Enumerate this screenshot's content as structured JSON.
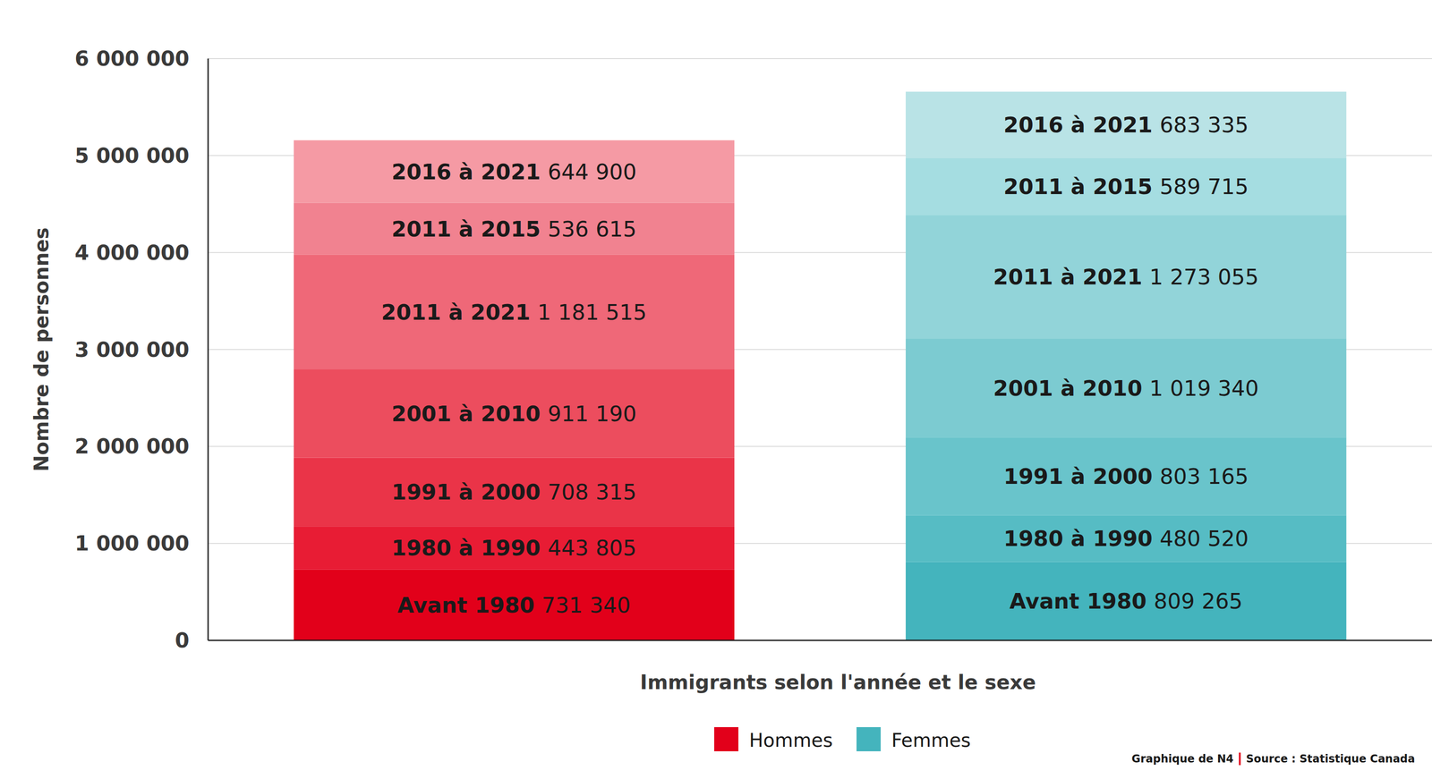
{
  "chart_data": {
    "type": "bar",
    "stacked": true,
    "x_label": "Immigrants selon l'année et le sexe",
    "y_label": "Nombre de personnes",
    "annotations": [
      "Graphique de N4",
      "Source : Statistique Canada"
    ],
    "categories": [
      "Avant 1980",
      "1980 à 1990",
      "1991 à 2000",
      "2001 à 2010",
      "2011 à 2021",
      "2011 à 2015",
      "2016 à 2021"
    ],
    "series": [
      {
        "name": "Hommes",
        "color": "#e2001a",
        "colors": [
          "#e2001a",
          "#e81c34",
          "#ea3448",
          "#ec4d5e",
          "#ef6878",
          "#f18290",
          "#f59aa4"
        ],
        "values": [
          731340,
          443805,
          708315,
          911190,
          1181515,
          536615,
          644900
        ],
        "value_labels": [
          "731 340",
          "443 805",
          "708 315",
          "911 190",
          "1 181 515",
          "536 615",
          "644 900"
        ]
      },
      {
        "name": "Femmes",
        "color": "#44b4bd",
        "colors": [
          "#44b4bd",
          "#56bcc4",
          "#69c4cb",
          "#7ccbd1",
          "#92d4d9",
          "#a5dde1",
          "#b9e3e6"
        ],
        "values": [
          809265,
          480520,
          803165,
          1019340,
          1273055,
          589715,
          683335
        ],
        "value_labels": [
          "809 265",
          "480 520",
          "803 165",
          "1 019 340",
          "1 273 055",
          "589 715",
          "683 335"
        ]
      }
    ],
    "ylim": [
      0,
      6000000
    ],
    "yticks": [
      {
        "value": 0,
        "label": "0"
      },
      {
        "value": 1000000,
        "label": "1 000 000"
      },
      {
        "value": 2000000,
        "label": "2 000 000"
      },
      {
        "value": 3000000,
        "label": "3 000 000"
      },
      {
        "value": 4000000,
        "label": "4 000 000"
      },
      {
        "value": 5000000,
        "label": "5 000 000"
      },
      {
        "value": 6000000,
        "label": "6 000 000"
      }
    ],
    "grid": true,
    "data_labels": true,
    "tick_labels": "y",
    "legend": "bottom"
  }
}
